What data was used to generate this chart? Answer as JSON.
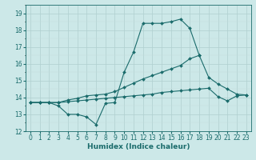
{
  "x": [
    0,
    1,
    2,
    3,
    4,
    5,
    6,
    7,
    8,
    9,
    10,
    11,
    12,
    13,
    14,
    15,
    16,
    17,
    18,
    19,
    20,
    21,
    22,
    23
  ],
  "line1": [
    13.7,
    13.7,
    13.7,
    13.5,
    13.0,
    13.0,
    12.85,
    12.4,
    13.65,
    13.7,
    15.5,
    16.7,
    18.4,
    18.4,
    18.4,
    18.5,
    18.65,
    18.1,
    16.5,
    null,
    null,
    null,
    null,
    null
  ],
  "line2": [
    13.7,
    13.7,
    13.7,
    13.7,
    13.85,
    13.95,
    14.1,
    14.15,
    14.2,
    14.35,
    14.6,
    14.85,
    15.1,
    15.3,
    15.5,
    15.7,
    15.9,
    16.3,
    16.5,
    15.2,
    14.8,
    14.5,
    14.2,
    14.15
  ],
  "line3": [
    13.7,
    13.7,
    13.7,
    13.7,
    13.75,
    13.8,
    13.85,
    13.9,
    13.95,
    14.0,
    14.05,
    14.1,
    14.15,
    14.2,
    14.3,
    14.35,
    14.4,
    14.45,
    14.5,
    14.55,
    14.05,
    13.8,
    14.1,
    14.15
  ],
  "bg_color": "#cce8e8",
  "line_color": "#1a6b6b",
  "grid_major_color": "#b0cfcf",
  "grid_minor_color": "#c5dede",
  "xlabel": "Humidex (Indice chaleur)",
  "xlim": [
    -0.5,
    23.5
  ],
  "ylim": [
    12,
    19.5
  ],
  "yticks": [
    12,
    13,
    14,
    15,
    16,
    17,
    18,
    19
  ],
  "xticks": [
    0,
    1,
    2,
    3,
    4,
    5,
    6,
    7,
    8,
    9,
    10,
    11,
    12,
    13,
    14,
    15,
    16,
    17,
    18,
    19,
    20,
    21,
    22,
    23
  ],
  "tick_fontsize": 5.5,
  "xlabel_fontsize": 6.5,
  "markersize": 2.0,
  "linewidth": 0.8
}
